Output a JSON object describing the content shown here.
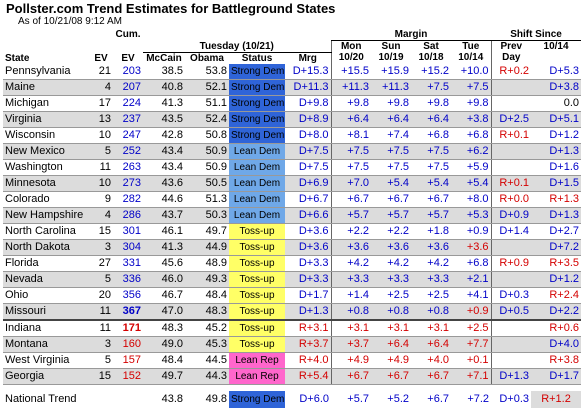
{
  "header": {
    "title": "Pollster.com Trend Estimates for Battleground States",
    "subtitle": "As of 10/21/08 9:12 AM"
  },
  "table": {
    "head": {
      "cum": "Cum.",
      "margin": "Margin",
      "shift": "Shift Since",
      "state": "State",
      "ev": "EV",
      "cum_ev": "EV",
      "tuesday": "Tuesday (10/21)",
      "mon": "Mon",
      "mon_date": "10/20",
      "sun": "Sun",
      "sun_date": "10/19",
      "sat": "Sat",
      "sat_date": "10/18",
      "tue": "Tue",
      "tue_date": "10/14",
      "prev": "Prev",
      "day": "Day",
      "since_date": "10/14",
      "mccain": "McCain",
      "obama": "Obama",
      "status": "Status",
      "mrg": "Mrg"
    },
    "colors": {
      "dem": "#0000c8",
      "rep": "#d40000"
    },
    "status_colors": {
      "Strong Dem": "#2f64d8",
      "Lean Dem": "#6fa8e8",
      "Toss-up": "#ffff66",
      "Lean Rep": "#ff66cc"
    },
    "rows": [
      {
        "state": "Pennsylvania",
        "ev": 21,
        "cum_ev": 203,
        "cum_color": "#0000c8",
        "mccain": "38.5",
        "obama": "53.8",
        "status": "Strong Dem",
        "mrg": "D+15.3",
        "margins": [
          "+15.5",
          "+15.9",
          "+15.2",
          "+10.0"
        ],
        "margin_colors": [
          "#0000c8",
          "#0000c8",
          "#0000c8",
          "#0000c8"
        ],
        "prev_day": "R+0.2",
        "since": "D+5.3"
      },
      {
        "state": "Maine",
        "ev": 4,
        "cum_ev": 207,
        "cum_color": "#0000c8",
        "mccain": "40.8",
        "obama": "52.1",
        "status": "Strong Dem",
        "mrg": "D+11.3",
        "margins": [
          "+11.3",
          "+11.3",
          "+7.5",
          "+7.5"
        ],
        "margin_colors": [
          "#0000c8",
          "#0000c8",
          "#0000c8",
          "#0000c8"
        ],
        "prev_day": null,
        "since": "D+3.8"
      },
      {
        "state": "Michigan",
        "ev": 17,
        "cum_ev": 224,
        "cum_color": "#0000c8",
        "mccain": "41.3",
        "obama": "51.1",
        "status": "Strong Dem",
        "mrg": "D+9.8",
        "margins": [
          "+9.8",
          "+9.8",
          "+9.8",
          "+9.8"
        ],
        "margin_colors": [
          "#0000c8",
          "#0000c8",
          "#0000c8",
          "#0000c8"
        ],
        "prev_day": null,
        "since": "0.0"
      },
      {
        "state": "Virginia",
        "ev": 13,
        "cum_ev": 237,
        "cum_color": "#0000c8",
        "mccain": "43.5",
        "obama": "52.4",
        "status": "Strong Dem",
        "mrg": "D+8.9",
        "margins": [
          "+6.4",
          "+6.4",
          "+6.4",
          "+3.8"
        ],
        "margin_colors": [
          "#0000c8",
          "#0000c8",
          "#0000c8",
          "#0000c8"
        ],
        "prev_day": "D+2.5",
        "since": "D+5.1"
      },
      {
        "state": "Wisconsin",
        "ev": 10,
        "cum_ev": 247,
        "cum_color": "#0000c8",
        "mccain": "42.8",
        "obama": "50.8",
        "status": "Strong Dem",
        "mrg": "D+8.0",
        "margins": [
          "+8.1",
          "+7.4",
          "+6.8",
          "+6.8"
        ],
        "margin_colors": [
          "#0000c8",
          "#0000c8",
          "#0000c8",
          "#0000c8"
        ],
        "prev_day": "R+0.1",
        "since": "D+1.2"
      },
      {
        "state": "New Mexico",
        "ev": 5,
        "cum_ev": 252,
        "cum_color": "#0000c8",
        "mccain": "43.4",
        "obama": "50.9",
        "status": "Lean Dem",
        "mrg": "D+7.5",
        "margins": [
          "+7.5",
          "+7.5",
          "+7.5",
          "+6.2"
        ],
        "margin_colors": [
          "#0000c8",
          "#0000c8",
          "#0000c8",
          "#0000c8"
        ],
        "prev_day": null,
        "since": "D+1.3"
      },
      {
        "state": "Washington",
        "ev": 11,
        "cum_ev": 263,
        "cum_color": "#0000c8",
        "mccain": "43.4",
        "obama": "50.9",
        "status": "Lean Dem",
        "mrg": "D+7.5",
        "margins": [
          "+7.5",
          "+7.5",
          "+7.5",
          "+5.9"
        ],
        "margin_colors": [
          "#0000c8",
          "#0000c8",
          "#0000c8",
          "#0000c8"
        ],
        "prev_day": null,
        "since": "D+1.6"
      },
      {
        "state": "Minnesota",
        "ev": 10,
        "cum_ev": 273,
        "cum_color": "#0000c8",
        "mccain": "43.6",
        "obama": "50.5",
        "status": "Lean Dem",
        "mrg": "D+6.9",
        "margins": [
          "+7.0",
          "+5.4",
          "+5.4",
          "+5.4"
        ],
        "margin_colors": [
          "#0000c8",
          "#0000c8",
          "#0000c8",
          "#0000c8"
        ],
        "prev_day": "R+0.1",
        "since": "D+1.5"
      },
      {
        "state": "Colorado",
        "ev": 9,
        "cum_ev": 282,
        "cum_color": "#0000c8",
        "mccain": "44.6",
        "obama": "51.3",
        "status": "Lean Dem",
        "mrg": "D+6.7",
        "margins": [
          "+6.7",
          "+6.7",
          "+6.7",
          "+8.0"
        ],
        "margin_colors": [
          "#0000c8",
          "#0000c8",
          "#0000c8",
          "#0000c8"
        ],
        "prev_day": "R+0.0",
        "since": "R+1.3"
      },
      {
        "state": "New Hampshire",
        "ev": 4,
        "cum_ev": 286,
        "cum_color": "#0000c8",
        "mccain": "43.7",
        "obama": "50.3",
        "status": "Lean Dem",
        "mrg": "D+6.6",
        "margins": [
          "+5.7",
          "+5.7",
          "+5.7",
          "+5.3"
        ],
        "margin_colors": [
          "#0000c8",
          "#0000c8",
          "#0000c8",
          "#0000c8"
        ],
        "prev_day": "D+0.9",
        "since": "D+1.3"
      },
      {
        "state": "North Carolina",
        "ev": 15,
        "cum_ev": 301,
        "cum_color": "#0000c8",
        "mccain": "46.1",
        "obama": "49.7",
        "status": "Toss-up",
        "mrg": "D+3.6",
        "margins": [
          "+2.2",
          "+2.2",
          "+1.8",
          "+0.9"
        ],
        "margin_colors": [
          "#0000c8",
          "#0000c8",
          "#0000c8",
          "#0000c8"
        ],
        "prev_day": "D+1.4",
        "since": "D+2.7"
      },
      {
        "state": "North Dakota",
        "ev": 3,
        "cum_ev": 304,
        "cum_color": "#0000c8",
        "mccain": "41.3",
        "obama": "44.9",
        "status": "Toss-up",
        "mrg": "D+3.6",
        "margins": [
          "+3.6",
          "+3.6",
          "+3.6",
          "+3.6"
        ],
        "margin_colors": [
          "#0000c8",
          "#0000c8",
          "#0000c8",
          "#d40000"
        ],
        "prev_day": null,
        "since": "D+7.2"
      },
      {
        "state": "Florida",
        "ev": 27,
        "cum_ev": 331,
        "cum_color": "#0000c8",
        "mccain": "45.6",
        "obama": "48.9",
        "status": "Toss-up",
        "mrg": "D+3.3",
        "margins": [
          "+4.2",
          "+4.2",
          "+4.2",
          "+6.8"
        ],
        "margin_colors": [
          "#0000c8",
          "#0000c8",
          "#0000c8",
          "#0000c8"
        ],
        "prev_day": "R+0.9",
        "since": "R+3.5"
      },
      {
        "state": "Nevada",
        "ev": 5,
        "cum_ev": 336,
        "cum_color": "#0000c8",
        "mccain": "46.0",
        "obama": "49.3",
        "status": "Toss-up",
        "mrg": "D+3.3",
        "margins": [
          "+3.3",
          "+3.3",
          "+3.3",
          "+2.1"
        ],
        "margin_colors": [
          "#0000c8",
          "#0000c8",
          "#0000c8",
          "#0000c8"
        ],
        "prev_day": null,
        "since": "D+1.2"
      },
      {
        "state": "Ohio",
        "ev": 20,
        "cum_ev": 356,
        "cum_color": "#0000c8",
        "mccain": "46.7",
        "obama": "48.4",
        "status": "Toss-up",
        "mrg": "D+1.7",
        "margins": [
          "+1.4",
          "+2.5",
          "+2.5",
          "+4.1"
        ],
        "margin_colors": [
          "#0000c8",
          "#0000c8",
          "#0000c8",
          "#0000c8"
        ],
        "prev_day": "D+0.3",
        "since": "R+2.4"
      },
      {
        "state": "Missouri",
        "ev": 11,
        "cum_ev": 367,
        "cum_color": "#0000c8",
        "cum_bold": true,
        "mccain": "47.0",
        "obama": "48.3",
        "status": "Toss-up",
        "mrg": "D+1.3",
        "margins": [
          "+0.8",
          "+0.8",
          "+0.8",
          "+0.9"
        ],
        "margin_colors": [
          "#0000c8",
          "#0000c8",
          "#0000c8",
          "#d40000"
        ],
        "prev_day": "D+0.5",
        "since": "D+2.2"
      },
      {
        "state": "Indiana",
        "ev": 11,
        "cum_ev": 171,
        "cum_color": "#d40000",
        "cum_bold": true,
        "mccain": "48.3",
        "obama": "45.2",
        "status": "Toss-up",
        "mrg": "R+3.1",
        "margins": [
          "+3.1",
          "+3.1",
          "+3.1",
          "+2.5"
        ],
        "margin_colors": [
          "#d40000",
          "#d40000",
          "#d40000",
          "#d40000"
        ],
        "prev_day": null,
        "since": "R+0.6"
      },
      {
        "state": "Montana",
        "ev": 3,
        "cum_ev": 160,
        "cum_color": "#d40000",
        "mccain": "49.0",
        "obama": "45.3",
        "status": "Toss-up",
        "mrg": "R+3.7",
        "margins": [
          "+3.7",
          "+6.4",
          "+6.4",
          "+7.7"
        ],
        "margin_colors": [
          "#d40000",
          "#d40000",
          "#d40000",
          "#d40000"
        ],
        "prev_day": null,
        "since": "D+4.0"
      },
      {
        "state": "West Virginia",
        "ev": 5,
        "cum_ev": 157,
        "cum_color": "#d40000",
        "mccain": "48.4",
        "obama": "44.5",
        "status": "Lean Rep",
        "mrg": "R+4.0",
        "margins": [
          "+4.9",
          "+4.9",
          "+4.0",
          "+0.1"
        ],
        "margin_colors": [
          "#d40000",
          "#d40000",
          "#d40000",
          "#d40000"
        ],
        "prev_day": null,
        "since": "R+3.8"
      },
      {
        "state": "Georgia",
        "ev": 15,
        "cum_ev": 152,
        "cum_color": "#d40000",
        "mccain": "49.7",
        "obama": "44.3",
        "status": "Lean Rep",
        "mrg": "R+5.4",
        "margins": [
          "+6.7",
          "+6.7",
          "+6.7",
          "+7.1"
        ],
        "margin_colors": [
          "#d40000",
          "#d40000",
          "#d40000",
          "#d40000"
        ],
        "prev_day": "D+1.3",
        "since": "D+1.7"
      }
    ],
    "national": {
      "state": "National Trend",
      "mccain": "43.8",
      "obama": "49.8",
      "status": "Strong Dem",
      "mrg": "D+6.0",
      "margins": [
        "+5.7",
        "+5.2",
        "+6.7",
        "+7.2"
      ],
      "margin_colors": [
        "#0000c8",
        "#0000c8",
        "#0000c8",
        "#0000c8"
      ],
      "prev_day": "D+0.3",
      "since": "R+1.2"
    }
  }
}
